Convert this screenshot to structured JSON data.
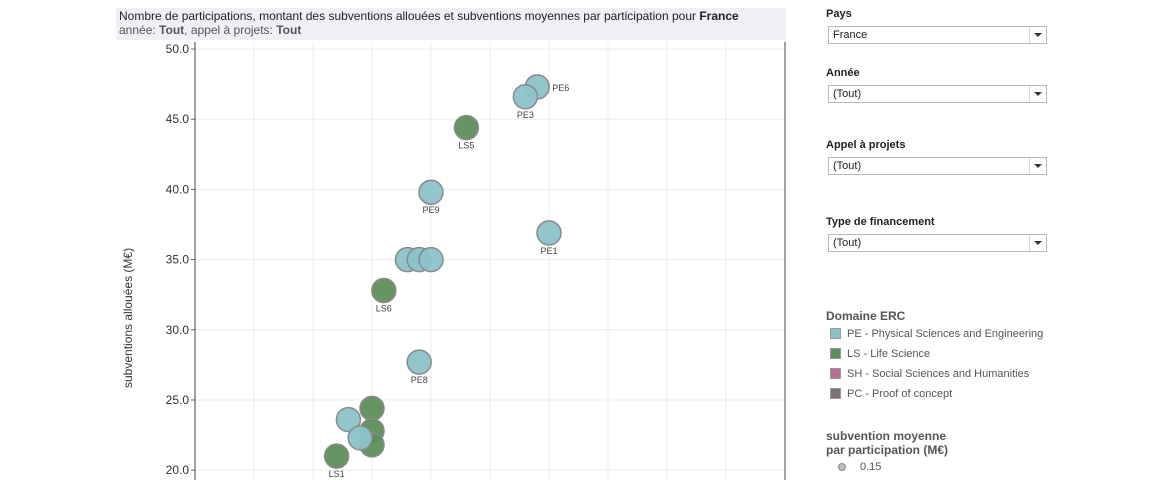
{
  "title": {
    "line1_prefix": "Nombre de participations, montant des subventions allouées et subventions moyennes par participation pour ",
    "line1_country": "France",
    "line2_year_label": "année: ",
    "line2_year_value": "Tout",
    "line2_call_label": ", appel à projets: ",
    "line2_call_value": "Tout"
  },
  "filters": [
    {
      "label": "Pays",
      "value": "France"
    },
    {
      "label": "Année",
      "value": "(Tout)"
    },
    {
      "label": "Appel à projets",
      "value": "(Tout)"
    },
    {
      "label": "Type de financement",
      "value": "(Tout)"
    }
  ],
  "legend": {
    "title": "Domaine ERC",
    "items": [
      {
        "label": "PE - Physical Sciences and Engineering",
        "color": "#8cc3c9"
      },
      {
        "label": "LS - Life Science",
        "color": "#5e8e5b"
      },
      {
        "label": "SH - Social Sciences and Humanities",
        "color": "#b86e8f"
      },
      {
        "label": "PC - Proof of concept",
        "color": "#7a7370"
      }
    ]
  },
  "size_legend": {
    "title_line1": "subvention moyenne",
    "title_line2": "par participation (M€)",
    "value": "0.15"
  },
  "chart_data": {
    "type": "scatter",
    "xlabel": "",
    "ylabel": "subventions allouées (M€)",
    "ylim": [
      19.3,
      50.5
    ],
    "xlim": [
      0,
      10
    ],
    "yticks": [
      "50.0",
      "45.0",
      "40.0",
      "35.0",
      "30.0",
      "25.0",
      "20.0"
    ],
    "grid": true,
    "points": [
      {
        "x": 5.8,
        "y": 47.3,
        "domain": "PE",
        "label": "PE6"
      },
      {
        "x": 5.6,
        "y": 46.6,
        "domain": "PE",
        "label": "PE3"
      },
      {
        "x": 4.6,
        "y": 44.4,
        "domain": "LS",
        "label": "LS5"
      },
      {
        "x": 4.0,
        "y": 39.8,
        "domain": "PE",
        "label": "PE9"
      },
      {
        "x": 6.0,
        "y": 36.9,
        "domain": "PE",
        "label": "PE1"
      },
      {
        "x": 3.6,
        "y": 35.0,
        "domain": "PE",
        "label": ""
      },
      {
        "x": 3.8,
        "y": 35.0,
        "domain": "PE",
        "label": ""
      },
      {
        "x": 4.0,
        "y": 35.0,
        "domain": "PE",
        "label": ""
      },
      {
        "x": 3.2,
        "y": 32.8,
        "domain": "LS",
        "label": "LS6"
      },
      {
        "x": 3.8,
        "y": 27.7,
        "domain": "PE",
        "label": "PE8"
      },
      {
        "x": 3.0,
        "y": 24.4,
        "domain": "LS",
        "label": ""
      },
      {
        "x": 3.0,
        "y": 22.8,
        "domain": "LS",
        "label": ""
      },
      {
        "x": 3.0,
        "y": 21.8,
        "domain": "LS",
        "label": ""
      },
      {
        "x": 2.6,
        "y": 23.6,
        "domain": "PE",
        "label": ""
      },
      {
        "x": 2.8,
        "y": 22.3,
        "domain": "PE",
        "label": ""
      },
      {
        "x": 2.4,
        "y": 21.0,
        "domain": "LS",
        "label": "LS1"
      }
    ]
  }
}
